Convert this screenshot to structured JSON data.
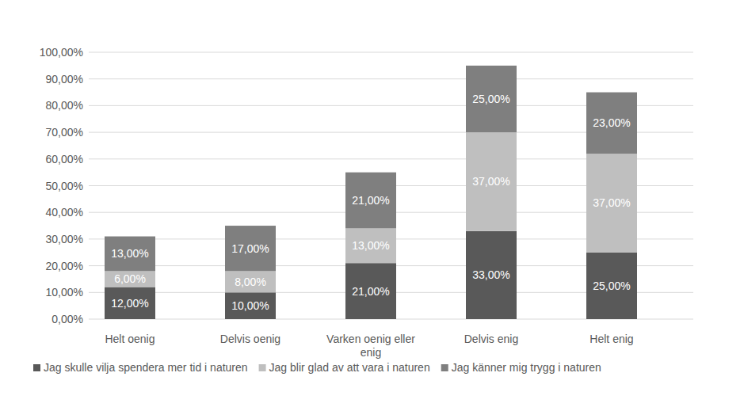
{
  "chart_data": {
    "type": "bar",
    "stacked": true,
    "data_labels": true,
    "grid": true,
    "legend": "bottom",
    "categories": [
      "Helt oenig",
      "Delvis oenig",
      "Varken oenig eller enig",
      "Delvis enig",
      "Helt enig"
    ],
    "ylim": [
      0,
      100
    ],
    "yticks": [
      {
        "value": 0,
        "label": "0,00%"
      },
      {
        "value": 10,
        "label": "10,00%"
      },
      {
        "value": 20,
        "label": "20,00%"
      },
      {
        "value": 30,
        "label": "30,00%"
      },
      {
        "value": 40,
        "label": "40,00%"
      },
      {
        "value": 50,
        "label": "50,00%"
      },
      {
        "value": 60,
        "label": "60,00%"
      },
      {
        "value": 70,
        "label": "70,00%"
      },
      {
        "value": 80,
        "label": "80,00%"
      },
      {
        "value": 90,
        "label": "90,00%"
      },
      {
        "value": 100,
        "label": "100,00%"
      }
    ],
    "series": [
      {
        "name": "Jag skulle vilja spendera mer tid i naturen",
        "color": "#595959",
        "values": [
          12,
          10,
          21,
          33,
          25
        ],
        "value_labels": [
          "12,00%",
          "10,00%",
          "21,00%",
          "33,00%",
          "25,00%"
        ]
      },
      {
        "name": "Jag blir glad av att vara i naturen",
        "color": "#bfbfbf",
        "values": [
          6,
          8,
          13,
          37,
          37
        ],
        "value_labels": [
          "6,00%",
          "8,00%",
          "13,00%",
          "37,00%",
          "37,00%"
        ]
      },
      {
        "name": "Jag känner mig trygg i naturen",
        "color": "#7f7f7f",
        "values": [
          13,
          17,
          21,
          25,
          23
        ],
        "value_labels": [
          "13,00%",
          "17,00%",
          "21,00%",
          "25,00%",
          "23,00%"
        ]
      }
    ]
  }
}
